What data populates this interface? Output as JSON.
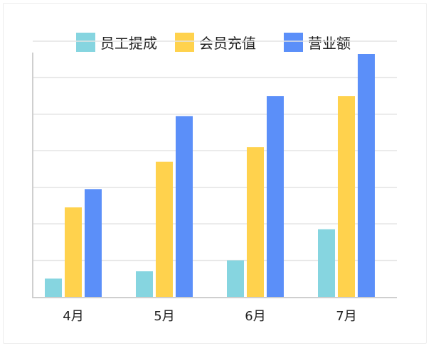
{
  "chart_data": {
    "type": "bar",
    "categories": [
      "4月",
      "5月",
      "6月",
      "7月"
    ],
    "series": [
      {
        "name": "员工提成",
        "color": "#86d5e0",
        "values": [
          5,
          7,
          10,
          18.5
        ]
      },
      {
        "name": "会员充值",
        "color": "#ffd24d",
        "values": [
          24.5,
          37,
          41,
          55
        ]
      },
      {
        "name": "营业额",
        "color": "#5b8ff9",
        "values": [
          29.5,
          49.5,
          55,
          66.5
        ]
      }
    ],
    "title": "",
    "xlabel": "",
    "ylabel": "",
    "ylim": [
      0,
      70
    ],
    "grid": true,
    "legend_position": "top"
  }
}
